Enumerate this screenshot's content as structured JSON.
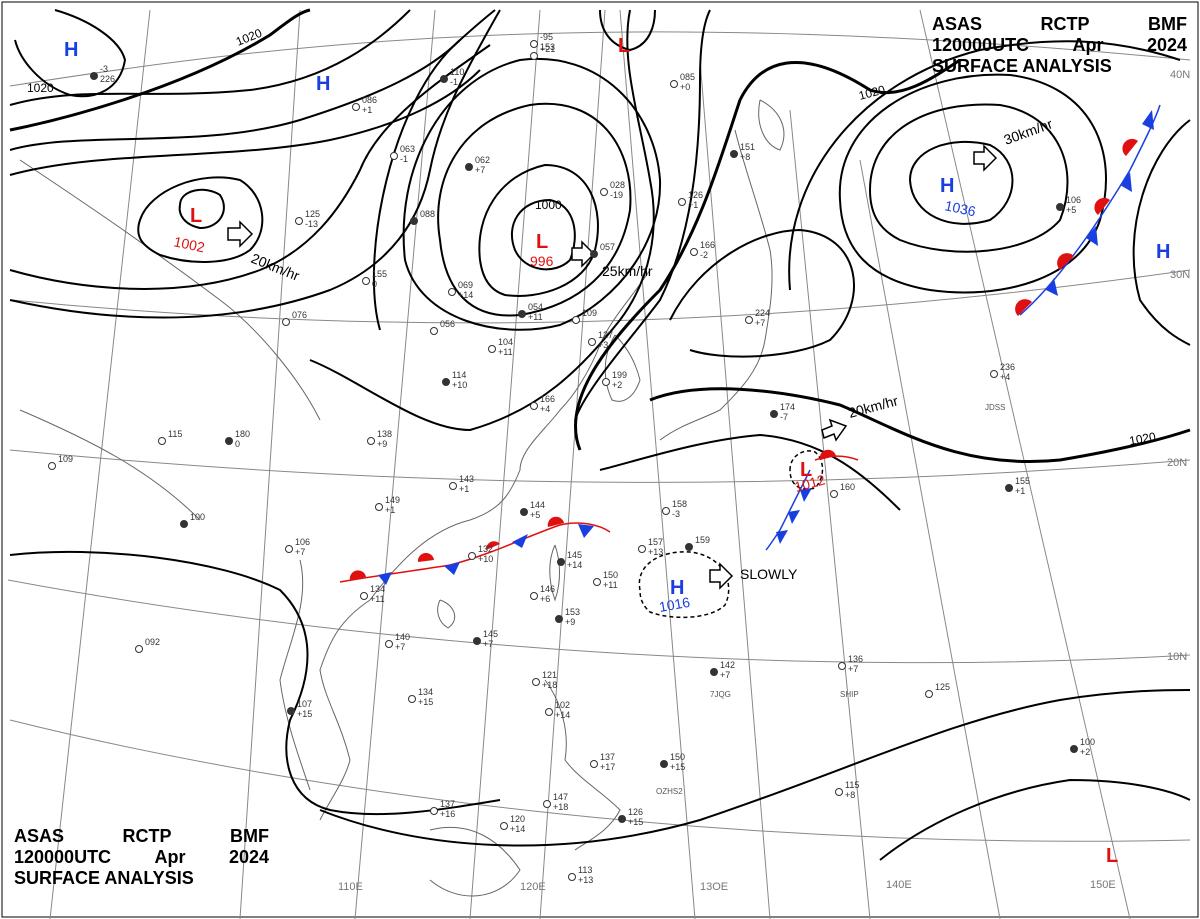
{
  "header": {
    "line1": [
      "ASAS",
      "RCTP",
      "BMF"
    ],
    "line2": [
      "120000UTC",
      "Apr",
      "2024"
    ],
    "line3": "SURFACE ANALYSIS"
  },
  "colors": {
    "high": "#1a3fe0",
    "low": "#e01010",
    "warm_front": "#e01010",
    "cold_front": "#1a3fe0",
    "isobar": "#000000",
    "grid": "#888888",
    "coast": "#555555"
  },
  "isobar_labels": {
    "i1020_a": "1020",
    "i1020_b": "1020",
    "i1020_c": "1020",
    "i1020_d": "1020",
    "i1000": "1000"
  },
  "pressure_systems": [
    {
      "id": "h1",
      "type": "H",
      "value": ""
    },
    {
      "id": "h2",
      "type": "H",
      "value": ""
    },
    {
      "id": "l1",
      "type": "L",
      "value": "1002"
    },
    {
      "id": "l2",
      "type": "L",
      "value": "996"
    },
    {
      "id": "l3",
      "type": "L",
      "value": ""
    },
    {
      "id": "h3",
      "type": "H",
      "value": "1036"
    },
    {
      "id": "h4",
      "type": "H",
      "value": ""
    },
    {
      "id": "l4",
      "type": "L",
      "value": "1012"
    },
    {
      "id": "h5",
      "type": "H",
      "value": "1016"
    },
    {
      "id": "l5",
      "type": "L",
      "value": ""
    }
  ],
  "motions": {
    "m1": "20km/hr",
    "m2": "25km/hr",
    "m3": "30km/hr",
    "m4": "20km/hr",
    "m5": "SLOWLY"
  },
  "lat_labels": {
    "n30": "30N",
    "n20": "20N",
    "n10": "10N",
    "n40": "40N"
  },
  "lon_labels": {
    "e110": "110E",
    "e120": "120E",
    "e130": "13OE",
    "e140": "140E",
    "e150": "150E"
  },
  "stations": [
    {
      "id": "s01",
      "a": "-3",
      "b": "226"
    },
    {
      "id": "s02",
      "a": "-95",
      "b": "153"
    },
    {
      "id": "s03",
      "a": "+21",
      "b": ""
    },
    {
      "id": "s04",
      "a": "110",
      "b": "-1"
    },
    {
      "id": "s05",
      "a": "086",
      "b": "+1"
    },
    {
      "id": "s06",
      "a": "063",
      "b": "-1"
    },
    {
      "id": "s07",
      "a": "062",
      "b": "+7"
    },
    {
      "id": "s08",
      "a": "028",
      "b": "-19"
    },
    {
      "id": "s09",
      "a": "125",
      "b": "-13"
    },
    {
      "id": "s10",
      "a": "088",
      "b": ""
    },
    {
      "id": "s11",
      "a": "155",
      "b": "0"
    },
    {
      "id": "s12",
      "a": "069",
      "b": "+14"
    },
    {
      "id": "s13",
      "a": "054",
      "b": "+11"
    },
    {
      "id": "s14",
      "a": "109",
      "b": ""
    },
    {
      "id": "s15",
      "a": "104",
      "b": "+11"
    },
    {
      "id": "s16",
      "a": "114",
      "b": "+10"
    },
    {
      "id": "s17",
      "a": "166",
      "b": "+4"
    },
    {
      "id": "s18",
      "a": "138",
      "b": "+9"
    },
    {
      "id": "s19",
      "a": "180",
      "b": "0"
    },
    {
      "id": "s20",
      "a": "115",
      "b": ""
    },
    {
      "id": "s21",
      "a": "109",
      "b": ""
    },
    {
      "id": "s22",
      "a": "100",
      "b": ""
    },
    {
      "id": "s23",
      "a": "143",
      "b": "+1"
    },
    {
      "id": "s24",
      "a": "149",
      "b": "+1"
    },
    {
      "id": "s25",
      "a": "144",
      "b": "+5"
    },
    {
      "id": "s26",
      "a": "106",
      "b": "+7"
    },
    {
      "id": "s27",
      "a": "132",
      "b": "+10"
    },
    {
      "id": "s28",
      "a": "145",
      "b": "+14"
    },
    {
      "id": "s29",
      "a": "150",
      "b": "+11"
    },
    {
      "id": "s30",
      "a": "157",
      "b": "+13"
    },
    {
      "id": "s31",
      "a": "159",
      "b": ""
    },
    {
      "id": "s32",
      "a": "158",
      "b": "-3"
    },
    {
      "id": "s33",
      "a": "146",
      "b": "+6"
    },
    {
      "id": "s34",
      "a": "153",
      "b": "+9"
    },
    {
      "id": "s35",
      "a": "134",
      "b": "+11"
    },
    {
      "id": "s36",
      "a": "140",
      "b": "+7"
    },
    {
      "id": "s37",
      "a": "145",
      "b": "+7"
    },
    {
      "id": "s38",
      "a": "092",
      "b": ""
    },
    {
      "id": "s39",
      "a": "134",
      "b": "+15"
    },
    {
      "id": "s40",
      "a": "107",
      "b": "+15"
    },
    {
      "id": "s41",
      "a": "121",
      "b": "+18"
    },
    {
      "id": "s42",
      "a": "102",
      "b": "+14"
    },
    {
      "id": "s43",
      "a": "142",
      "b": "+7"
    },
    {
      "id": "s44",
      "a": "136",
      "b": "+7"
    },
    {
      "id": "s45",
      "a": "125",
      "b": ""
    },
    {
      "id": "s46",
      "a": "100",
      "b": "+2"
    },
    {
      "id": "s47",
      "a": "137",
      "b": "+16"
    },
    {
      "id": "s48",
      "a": "137",
      "b": "+17"
    },
    {
      "id": "s49",
      "a": "150",
      "b": "+15"
    },
    {
      "id": "s50",
      "a": "147",
      "b": "+18"
    },
    {
      "id": "s51",
      "a": "120",
      "b": "+14"
    },
    {
      "id": "s52",
      "a": "126",
      "b": "+15"
    },
    {
      "id": "s53",
      "a": "115",
      "b": "+8"
    },
    {
      "id": "s54",
      "a": "113",
      "b": "+13"
    },
    {
      "id": "s55",
      "a": "106",
      "b": "+5"
    },
    {
      "id": "s56",
      "a": "199",
      "b": "+2"
    },
    {
      "id": "s57",
      "a": "127",
      "b": "+3"
    },
    {
      "id": "s58",
      "a": "057",
      "b": ""
    },
    {
      "id": "s59",
      "a": "166",
      "b": "-2"
    },
    {
      "id": "s60",
      "a": "126",
      "b": "+1"
    },
    {
      "id": "s61",
      "a": "151",
      "b": "+8"
    },
    {
      "id": "s62",
      "a": "085",
      "b": "+0"
    },
    {
      "id": "s63",
      "a": "224",
      "b": "+7"
    },
    {
      "id": "s64",
      "a": "174",
      "b": "-7"
    },
    {
      "id": "s65",
      "a": "160",
      "b": ""
    },
    {
      "id": "s66",
      "a": "236",
      "b": "+4"
    },
    {
      "id": "s67",
      "a": "155",
      "b": "+1"
    },
    {
      "id": "s68",
      "a": "076",
      "b": ""
    },
    {
      "id": "s69",
      "a": "056",
      "b": ""
    }
  ],
  "station_ids": {
    "j1": "JDSS",
    "j2": "7JQG",
    "j3": "SHIP",
    "j4": "OZHS2"
  }
}
